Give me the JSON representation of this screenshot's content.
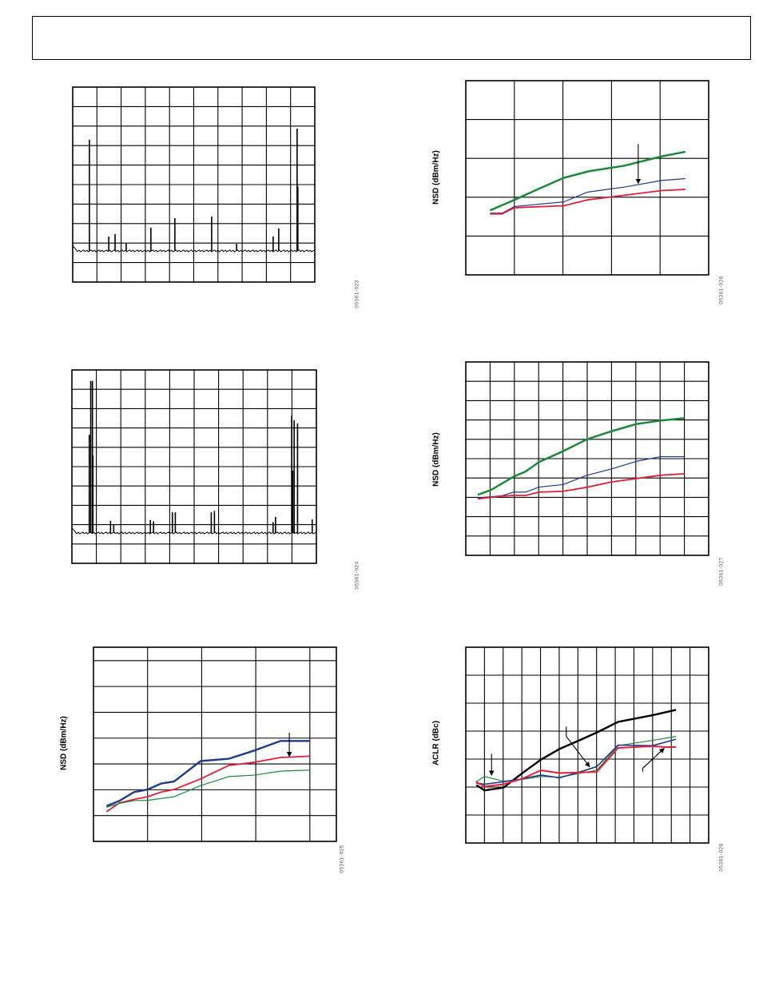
{
  "chart_data": [
    {
      "id": "spectrum-1",
      "type": "bar",
      "title": "",
      "xlabel": "",
      "ylabel": "",
      "code": "05361-023",
      "xlim": [
        0,
        10
      ],
      "ylim": [
        0,
        10
      ],
      "grid": true,
      "xgrid": [
        1,
        2,
        3,
        4,
        5,
        6,
        7,
        8,
        9
      ],
      "ygrid": [
        1,
        2,
        3,
        4,
        5,
        6,
        7,
        8,
        9
      ],
      "noise_floor": 1.6,
      "spikes": [
        [
          0.69,
          7.3
        ],
        [
          1.49,
          2.34
        ],
        [
          1.75,
          2.46
        ],
        [
          2.21,
          1.97
        ],
        [
          3.23,
          2.79
        ],
        [
          4.22,
          3.28
        ],
        [
          5.74,
          3.36
        ],
        [
          6.77,
          1.97
        ],
        [
          8.28,
          2.34
        ],
        [
          8.51,
          2.75
        ],
        [
          9.27,
          7.87
        ],
        [
          9.3,
          4.9
        ]
      ],
      "color": "#000000"
    },
    {
      "id": "nsd-top-right",
      "type": "line",
      "title": "",
      "xlabel": "",
      "ylabel": "NSD (dBm/Hz)",
      "code": "05361-026",
      "xlim": [
        0,
        5
      ],
      "ylim": [
        0,
        5
      ],
      "grid": true,
      "xgrid": [
        1,
        2,
        3,
        4
      ],
      "ygrid": [
        1,
        2,
        3,
        4
      ],
      "series": [
        {
          "name": "green",
          "color": "#1a8a3a",
          "width": 2.5,
          "x": [
            0.5,
            1.0,
            1.49,
            2.02,
            2.54,
            3.26,
            4.03,
            4.52
          ],
          "y": [
            1.66,
            1.93,
            2.21,
            2.5,
            2.67,
            2.81,
            3.05,
            3.17
          ]
        },
        {
          "name": "blue",
          "color": "#1f3a8a",
          "width": 1.2,
          "x": [
            0.5,
            0.75,
            1.0,
            2.02,
            2.5,
            3.26,
            4.03,
            4.52
          ],
          "y": [
            1.59,
            1.59,
            1.76,
            1.88,
            2.13,
            2.26,
            2.43,
            2.48
          ]
        },
        {
          "name": "red",
          "color": "#e0203a",
          "width": 1.8,
          "x": [
            0.5,
            0.75,
            1.0,
            2.02,
            2.5,
            3.26,
            4.03,
            4.52
          ],
          "y": [
            1.57,
            1.57,
            1.73,
            1.78,
            1.93,
            2.05,
            2.17,
            2.2
          ]
        }
      ],
      "arrows": [
        [
          [
            3.55,
            3.37
          ],
          [
            3.55,
            2.36
          ]
        ]
      ]
    },
    {
      "id": "spectrum-2",
      "type": "bar",
      "title": "",
      "xlabel": "",
      "ylabel": "",
      "code": "05361-024",
      "xlim": [
        0,
        10
      ],
      "ylim": [
        0,
        10
      ],
      "grid": true,
      "xgrid": [
        1,
        2,
        3,
        4,
        5,
        6,
        7,
        8,
        9
      ],
      "ygrid": [
        1,
        2,
        3,
        4,
        5,
        6,
        7,
        8,
        9
      ],
      "noise_floor": 1.57,
      "spikes": [
        [
          0.71,
          6.65
        ],
        [
          0.77,
          9.43
        ],
        [
          0.84,
          9.43
        ],
        [
          0.86,
          5.58
        ],
        [
          1.58,
          2.2
        ],
        [
          1.71,
          2.0
        ],
        [
          3.21,
          2.23
        ],
        [
          3.34,
          2.17
        ],
        [
          4.11,
          2.64
        ],
        [
          4.23,
          2.64
        ],
        [
          5.7,
          2.64
        ],
        [
          5.83,
          2.71
        ],
        [
          8.23,
          2.13
        ],
        [
          8.33,
          2.4
        ],
        [
          8.99,
          7.64
        ],
        [
          9.03,
          4.8
        ],
        [
          9.09,
          7.4
        ],
        [
          9.23,
          7.23
        ],
        [
          9.83,
          2.27
        ]
      ],
      "color": "#000000"
    },
    {
      "id": "nsd-mid-right",
      "type": "line",
      "title": "",
      "xlabel": "",
      "ylabel": "NSD (dBm/Hz)",
      "code": "05361-027",
      "xlim": [
        0,
        10
      ],
      "ylim": [
        0,
        10
      ],
      "grid": true,
      "xgrid": [
        1,
        2,
        3,
        4,
        5,
        6,
        7,
        8,
        9
      ],
      "ygrid": [
        1,
        2,
        3,
        4,
        5,
        6,
        7,
        8,
        9
      ],
      "series": [
        {
          "name": "green",
          "color": "#1a8a3a",
          "width": 2.5,
          "x": [
            0.49,
            1.04,
            1.97,
            2.47,
            3.02,
            4.0,
            4.99,
            5.98,
            7.02,
            8.0,
            8.99
          ],
          "y": [
            3.13,
            3.38,
            4.07,
            4.34,
            4.83,
            5.38,
            6.0,
            6.41,
            6.79,
            6.97,
            7.09
          ]
        },
        {
          "name": "blue",
          "color": "#1f3a8a",
          "width": 1.2,
          "x": [
            0.49,
            1.48,
            1.97,
            2.47,
            3.02,
            4.0,
            4.99,
            5.98,
            7.02,
            8.0,
            8.99
          ],
          "y": [
            2.97,
            3.08,
            3.27,
            3.27,
            3.53,
            3.66,
            4.14,
            4.46,
            4.86,
            5.1,
            5.1
          ]
        },
        {
          "name": "red",
          "color": "#e0203a",
          "width": 1.8,
          "x": [
            0.49,
            1.48,
            1.97,
            2.47,
            3.02,
            4.0,
            4.99,
            5.98,
            7.02,
            8.0,
            8.99
          ],
          "y": [
            2.92,
            3.06,
            3.1,
            3.1,
            3.27,
            3.31,
            3.52,
            3.79,
            3.97,
            4.14,
            4.22
          ]
        }
      ],
      "arrows": []
    },
    {
      "id": "nsd-bottom-left",
      "type": "line",
      "title": "",
      "xlabel": "",
      "ylabel": "NSD (dBm/Hz)",
      "code": "05361-025",
      "xlim": [
        0,
        4.49
      ],
      "ylim": [
        0,
        7.52
      ],
      "grid": true,
      "xgrid": [
        1,
        2,
        3,
        4
      ],
      "ygrid": [
        1,
        2,
        3,
        4,
        5,
        6,
        7
      ],
      "series": [
        {
          "name": "blue",
          "color": "#1f3a8a",
          "width": 2.4,
          "x": [
            0.24,
            0.48,
            0.75,
            1.0,
            1.25,
            1.49,
            1.98,
            2.5,
            2.99,
            3.46,
            3.99
          ],
          "y": [
            1.37,
            1.57,
            1.91,
            2.01,
            2.24,
            2.32,
            3.11,
            3.2,
            3.53,
            3.89,
            3.89
          ]
        },
        {
          "name": "red",
          "color": "#e0203a",
          "width": 1.8,
          "x": [
            0.24,
            0.48,
            0.75,
            1.0,
            1.25,
            1.49,
            1.98,
            2.5,
            2.99,
            3.46,
            3.99
          ],
          "y": [
            1.15,
            1.49,
            1.63,
            1.73,
            1.91,
            2.01,
            2.42,
            2.94,
            3.07,
            3.25,
            3.3
          ]
        },
        {
          "name": "green",
          "color": "#1a8a3a",
          "width": 1.2,
          "x": [
            0.24,
            0.48,
            0.75,
            1.0,
            1.49,
            1.98,
            2.5,
            2.99,
            3.46,
            3.99
          ],
          "y": [
            1.32,
            1.47,
            1.58,
            1.59,
            1.73,
            2.16,
            2.51,
            2.57,
            2.72,
            2.76
          ]
        }
      ],
      "arrows": [
        [
          [
            3.62,
            4.21
          ],
          [
            3.62,
            3.3
          ]
        ]
      ]
    },
    {
      "id": "aclr-bottom-right",
      "type": "line",
      "title": "",
      "xlabel": "",
      "ylabel": "ACLR (dBc)",
      "code": "05361-028",
      "xlim": [
        0,
        13
      ],
      "ylim": [
        0,
        7
      ],
      "grid": true,
      "xgrid": [
        1,
        2,
        3,
        4,
        5,
        6,
        7,
        8,
        9,
        10,
        11,
        12
      ],
      "ygrid": [
        1,
        2,
        3,
        4,
        5,
        6
      ],
      "series": [
        {
          "name": "black",
          "color": "#000000",
          "width": 2.4,
          "x": [
            0.57,
            1.0,
            2.02,
            2.99,
            4.02,
            5.01,
            6.01,
            7.01,
            8.15,
            10.0,
            11.25
          ],
          "y": [
            2.07,
            1.88,
            1.98,
            2.48,
            2.98,
            3.36,
            3.65,
            3.95,
            4.33,
            4.57,
            4.76
          ]
        },
        {
          "name": "green",
          "color": "#1a8a3a",
          "width": 1.2,
          "x": [
            0.57,
            1.0,
            2.02,
            2.99,
            4.02,
            5.01,
            6.01,
            7.01,
            8.15,
            10.0,
            11.25
          ],
          "y": [
            2.19,
            2.38,
            2.21,
            2.27,
            2.38,
            2.35,
            2.48,
            2.6,
            3.48,
            3.67,
            3.81
          ]
        },
        {
          "name": "blue",
          "color": "#1f3a8a",
          "width": 1.6,
          "x": [
            0.57,
            1.0,
            2.02,
            2.99,
            4.02,
            5.01,
            6.01,
            7.01,
            8.15,
            10.0,
            11.25
          ],
          "y": [
            2.14,
            2.1,
            2.19,
            2.29,
            2.43,
            2.33,
            2.52,
            2.73,
            3.5,
            3.48,
            3.71
          ]
        },
        {
          "name": "red",
          "color": "#e0203a",
          "width": 2.0,
          "x": [
            0.54,
            1.0,
            2.02,
            2.99,
            4.02,
            5.01,
            6.01,
            7.01,
            8.15,
            10.0,
            10.68,
            11.25
          ],
          "y": [
            2.19,
            2.02,
            2.1,
            2.29,
            2.6,
            2.5,
            2.52,
            2.54,
            3.4,
            3.46,
            3.43,
            3.43
          ]
        }
      ],
      "arrows": [
        [
          [
            1.38,
            3.19
          ],
          [
            1.38,
            2.43
          ]
        ],
        [
          [
            5.38,
            4.16
          ],
          [
            5.38,
            3.81
          ],
          [
            6.62,
            2.73
          ]
        ],
        [
          [
            9.47,
            2.55
          ],
          [
            9.47,
            2.67
          ],
          [
            10.61,
            3.38
          ]
        ]
      ]
    }
  ]
}
